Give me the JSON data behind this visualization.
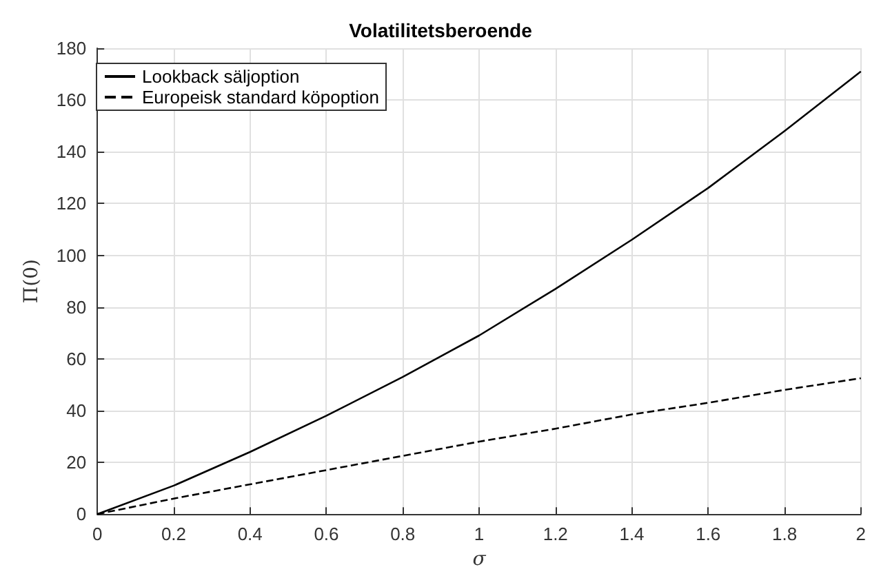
{
  "chart_data": {
    "type": "line",
    "title": "Volatilitetsberoende",
    "xlabel": "σ",
    "ylabel": "Π(0)",
    "x": [
      0,
      0.2,
      0.4,
      0.6,
      0.8,
      1.0,
      1.2,
      1.4,
      1.6,
      1.8,
      2.0
    ],
    "series": [
      {
        "name": "Lookback säljoption",
        "color": "#000000",
        "line_style": "solid",
        "values": [
          0,
          11,
          24,
          38,
          53,
          69,
          87,
          106,
          126,
          148,
          171
        ]
      },
      {
        "name": "Europeisk standard köpoption",
        "color": "#000000",
        "line_style": "dashed",
        "values": [
          0,
          6,
          11.5,
          17,
          22.5,
          28,
          33,
          38.5,
          43,
          48,
          52.5
        ]
      }
    ],
    "xlim": [
      0,
      2
    ],
    "xticks": [
      0,
      0.2,
      0.4,
      0.6,
      0.8,
      1,
      1.2,
      1.4,
      1.6,
      1.8,
      2
    ],
    "ylim": [
      0,
      180
    ],
    "yticks": [
      0,
      20,
      40,
      60,
      80,
      100,
      120,
      140,
      160,
      180
    ],
    "grid": true,
    "legend": "top left",
    "marker": "none"
  }
}
